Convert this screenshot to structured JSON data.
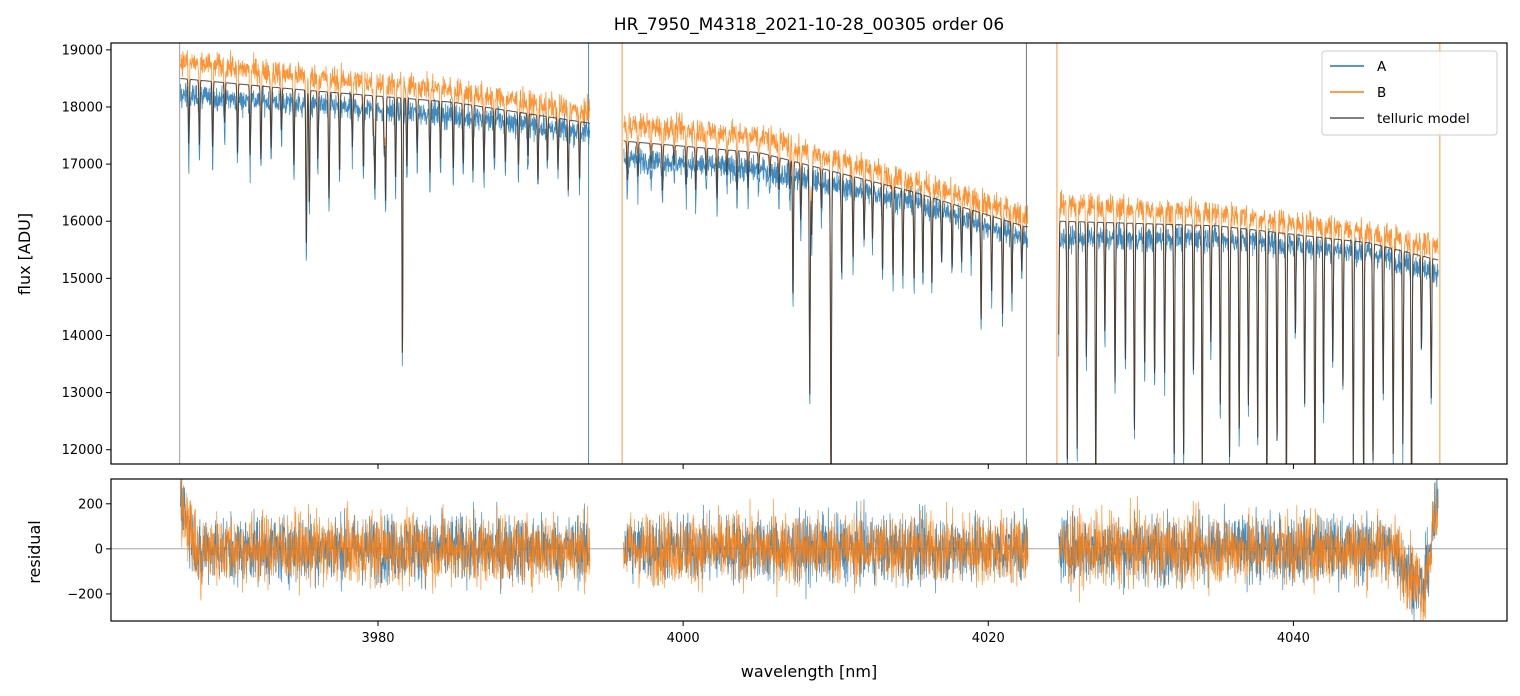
{
  "chart_data": [
    {
      "type": "line",
      "title": "HR_7950_M4318_2021-10-28_00305  order 06",
      "xlabel": "",
      "ylabel": "flux [ADU]",
      "xlim": [
        3962.5,
        4054
      ],
      "ylim": [
        11750,
        19120
      ],
      "xticks": [
        3980,
        4000,
        4020,
        4040
      ],
      "yticks": [
        12000,
        13000,
        14000,
        15000,
        16000,
        17000,
        18000,
        19000
      ],
      "legend": {
        "placement": "top-right",
        "entries": [
          "A",
          "B",
          "telluric model"
        ]
      },
      "gaps": [
        [
          3993.9,
          3996.1
        ],
        [
          4022.6,
          4024.6
        ]
      ],
      "series": [
        {
          "name": "A",
          "color": "#1f77b4",
          "x": [
            3967,
            3975,
            3985,
            3993.8,
            3996.2,
            4005,
            4015,
            4022.5,
            4024.7,
            4035,
            4045,
            4049.5
          ],
          "y": [
            18200,
            18050,
            17850,
            17550,
            17100,
            16900,
            16350,
            15700,
            15700,
            15700,
            15450,
            15100
          ]
        },
        {
          "name": "B",
          "color": "#ff7f0e",
          "x": [
            3967,
            3975,
            3985,
            3993.8,
            3996.2,
            4005,
            4015,
            4022.5,
            4024.7,
            4035,
            4045,
            4049.5
          ],
          "y": [
            18800,
            18550,
            18300,
            17900,
            17700,
            17500,
            16700,
            16100,
            16300,
            16150,
            15800,
            15550
          ]
        },
        {
          "name": "telluric model",
          "color": "#555555",
          "x": [
            3967,
            3975,
            3985,
            3993.8,
            3996.2,
            4005,
            4015,
            4022.5,
            4024.7,
            4035,
            4045,
            4049.5
          ],
          "y": [
            18500,
            18300,
            18080,
            17720,
            17400,
            17200,
            16520,
            15900,
            16000,
            15920,
            15620,
            15320
          ]
        }
      ]
    },
    {
      "type": "line",
      "title": "",
      "xlabel": "wavelength [nm]",
      "ylabel": "residual",
      "xlim": [
        3962.5,
        4054
      ],
      "ylim": [
        -320,
        310
      ],
      "xticks": [
        3980,
        4000,
        4020,
        4040
      ],
      "yticks": [
        -200,
        0,
        200
      ],
      "tick_labels": [
        "−200",
        "0",
        "200"
      ],
      "series": [
        {
          "name": "A",
          "color": "#1f77b4"
        },
        {
          "name": "B",
          "color": "#ff7f0e"
        }
      ]
    }
  ]
}
